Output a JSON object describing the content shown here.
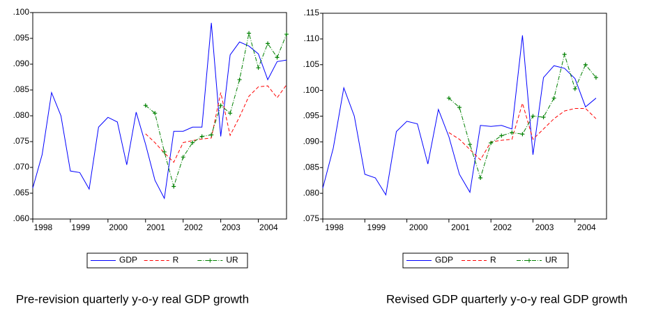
{
  "chart_data": [
    {
      "type": "line",
      "caption": "Pre-revision quarterly y-o-y real GDP growth",
      "categories": [
        "1998",
        null,
        null,
        null,
        "1999",
        null,
        null,
        null,
        "2000",
        null,
        null,
        null,
        "2001",
        null,
        null,
        null,
        "2002",
        null,
        null,
        null,
        "2003",
        null,
        null,
        null,
        "2004",
        null,
        null,
        null
      ],
      "series": [
        {
          "name": "GDP",
          "color": "#0000ff",
          "style": "solid",
          "values": [
            0.066,
            0.0725,
            0.0845,
            0.08,
            0.0693,
            0.069,
            0.0658,
            0.0778,
            0.0797,
            0.0788,
            0.0705,
            0.0807,
            0.0745,
            0.0675,
            0.064,
            0.077,
            0.077,
            0.0778,
            0.0778,
            0.098,
            0.076,
            0.0918,
            0.0943,
            0.0935,
            0.092,
            0.087,
            0.0905,
            0.0908
          ]
        },
        {
          "name": "R",
          "color": "#ff0000",
          "style": "dashed",
          "values": [
            null,
            null,
            null,
            null,
            null,
            null,
            null,
            null,
            null,
            null,
            null,
            null,
            0.0765,
            0.0748,
            0.0728,
            0.071,
            0.0748,
            0.0752,
            0.0755,
            0.0757,
            0.0845,
            0.0762,
            0.0798,
            0.0838,
            0.0856,
            0.0858,
            0.0835,
            0.086
          ]
        },
        {
          "name": "UR",
          "color": "#008000",
          "style": "dashdot",
          "marker": "plus",
          "values": [
            null,
            null,
            null,
            null,
            null,
            null,
            null,
            null,
            null,
            null,
            null,
            null,
            0.082,
            0.0805,
            0.073,
            0.0663,
            0.072,
            0.0748,
            0.076,
            0.0763,
            0.082,
            0.0805,
            0.087,
            0.096,
            0.0893,
            0.094,
            0.0913,
            0.0958
          ]
        }
      ],
      "ylim": [
        0.06,
        0.1
      ],
      "yticks": [
        {
          "value": 0.06,
          "label": ".060"
        },
        {
          "value": 0.065,
          "label": ".065"
        },
        {
          "value": 0.07,
          "label": ".070"
        },
        {
          "value": 0.075,
          "label": ".075"
        },
        {
          "value": 0.08,
          "label": ".080"
        },
        {
          "value": 0.085,
          "label": ".085"
        },
        {
          "value": 0.09,
          "label": ".090"
        },
        {
          "value": 0.095,
          "label": ".095"
        },
        {
          "value": 0.1,
          "label": ".100"
        }
      ],
      "grid": false,
      "legend": "bottom"
    },
    {
      "type": "line",
      "caption": "Revised GDP quarterly y-o-y real GDP growth",
      "categories": [
        "1998",
        null,
        null,
        null,
        "1999",
        null,
        null,
        null,
        "2000",
        null,
        null,
        null,
        "2001",
        null,
        null,
        null,
        "2002",
        null,
        null,
        null,
        "2003",
        null,
        null,
        null,
        "2004",
        null,
        null,
        null
      ],
      "series": [
        {
          "name": "GDP",
          "color": "#0000ff",
          "style": "solid",
          "values": [
            0.081,
            0.0888,
            0.1005,
            0.095,
            0.0837,
            0.083,
            0.0797,
            0.092,
            0.094,
            0.0935,
            0.0857,
            0.0963,
            0.091,
            0.0837,
            0.0802,
            0.0932,
            0.093,
            0.0932,
            0.0925,
            0.1107,
            0.0875,
            0.1025,
            0.1048,
            0.1043,
            0.1023,
            0.0968,
            0.0985,
            null
          ]
        },
        {
          "name": "R",
          "color": "#ff0000",
          "style": "dashed",
          "values": [
            null,
            null,
            null,
            null,
            null,
            null,
            null,
            null,
            null,
            null,
            null,
            null,
            0.0918,
            0.0905,
            0.0885,
            0.0865,
            0.09,
            0.0903,
            0.0905,
            0.0975,
            0.0905,
            0.0925,
            0.0945,
            0.096,
            0.0965,
            0.0965,
            0.0945,
            null
          ]
        },
        {
          "name": "UR",
          "color": "#008000",
          "style": "dashdot",
          "marker": "plus",
          "values": [
            null,
            null,
            null,
            null,
            null,
            null,
            null,
            null,
            null,
            null,
            null,
            null,
            0.0985,
            0.0967,
            0.0895,
            0.083,
            0.0898,
            0.0912,
            0.0918,
            0.0915,
            0.095,
            0.0948,
            0.0985,
            0.107,
            0.1003,
            0.105,
            0.1025,
            null
          ]
        }
      ],
      "ylim": [
        0.075,
        0.115
      ],
      "yticks": [
        {
          "value": 0.075,
          "label": ".075"
        },
        {
          "value": 0.08,
          "label": ".080"
        },
        {
          "value": 0.085,
          "label": ".085"
        },
        {
          "value": 0.09,
          "label": ".090"
        },
        {
          "value": 0.095,
          "label": ".095"
        },
        {
          "value": 0.1,
          "label": ".100"
        },
        {
          "value": 0.105,
          "label": ".105"
        },
        {
          "value": 0.11,
          "label": ".110"
        },
        {
          "value": 0.115,
          "label": ".115"
        }
      ],
      "grid": false,
      "legend": "bottom"
    }
  ]
}
